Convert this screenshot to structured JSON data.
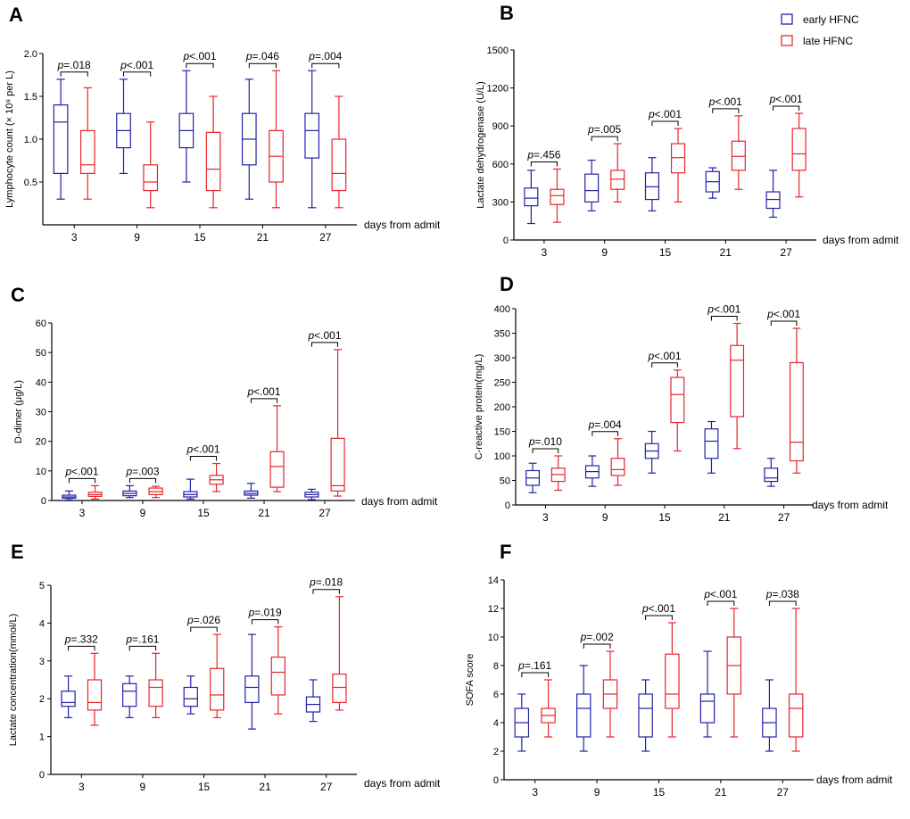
{
  "figure_title": "",
  "colors": {
    "early": "#2222a8",
    "late": "#e8262b",
    "axis": "#000000"
  },
  "legend": {
    "items": [
      {
        "label": "early HFNC",
        "series": "early"
      },
      {
        "label": "late HFNC",
        "series": "late"
      }
    ]
  },
  "chart_data": [
    {
      "type": "box",
      "panel": "A",
      "ylabel": "Lymphocyte count (× 10⁹ per L)",
      "xlabel": "days from admit",
      "categories": [
        "3",
        "9",
        "15",
        "21",
        "27"
      ],
      "ylim": [
        0,
        2.0
      ],
      "yticks": [
        0.5,
        1.0,
        1.5,
        2.0
      ],
      "ytick_labels": [
        "0.5",
        "1.0",
        "1.5",
        "2.0"
      ],
      "series": [
        {
          "name": "early HFNC",
          "boxes": [
            {
              "min": 0.3,
              "q1": 0.6,
              "median": 1.2,
              "q3": 1.4,
              "max": 1.7
            },
            {
              "min": 0.6,
              "q1": 0.9,
              "median": 1.1,
              "q3": 1.3,
              "max": 1.7
            },
            {
              "min": 0.5,
              "q1": 0.9,
              "median": 1.1,
              "q3": 1.3,
              "max": 1.8
            },
            {
              "min": 0.3,
              "q1": 0.7,
              "median": 1.0,
              "q3": 1.3,
              "max": 1.7
            },
            {
              "min": 0.2,
              "q1": 0.78,
              "median": 1.1,
              "q3": 1.3,
              "max": 1.8
            }
          ]
        },
        {
          "name": "late HFNC",
          "boxes": [
            {
              "min": 0.3,
              "q1": 0.6,
              "median": 0.7,
              "q3": 1.1,
              "max": 1.6
            },
            {
              "min": 0.2,
              "q1": 0.4,
              "median": 0.5,
              "q3": 0.7,
              "max": 1.2
            },
            {
              "min": 0.2,
              "q1": 0.4,
              "median": 0.65,
              "q3": 1.08,
              "max": 1.5
            },
            {
              "min": 0.2,
              "q1": 0.5,
              "median": 0.8,
              "q3": 1.1,
              "max": 1.8
            },
            {
              "min": 0.2,
              "q1": 0.4,
              "median": 0.6,
              "q3": 1.0,
              "max": 1.5
            }
          ]
        }
      ],
      "pvalues": [
        "=.018",
        "<.001",
        "<.001",
        "=.046",
        "=.004"
      ]
    },
    {
      "type": "box",
      "panel": "B",
      "ylabel": "Lactate dehydrogenase (U/L)",
      "xlabel": "days from admit",
      "categories": [
        "3",
        "9",
        "15",
        "21",
        "27"
      ],
      "ylim": [
        0,
        1500
      ],
      "yticks": [
        0,
        300,
        600,
        900,
        1200,
        1500
      ],
      "ytick_labels": [
        "0",
        "300",
        "600",
        "900",
        "1200",
        "1500"
      ],
      "series": [
        {
          "name": "early HFNC",
          "boxes": [
            {
              "min": 130,
              "q1": 270,
              "median": 330,
              "q3": 410,
              "max": 550
            },
            {
              "min": 230,
              "q1": 300,
              "median": 390,
              "q3": 520,
              "max": 630
            },
            {
              "min": 230,
              "q1": 320,
              "median": 420,
              "q3": 530,
              "max": 650
            },
            {
              "min": 330,
              "q1": 380,
              "median": 460,
              "q3": 540,
              "max": 570
            },
            {
              "min": 180,
              "q1": 250,
              "median": 320,
              "q3": 380,
              "max": 550
            }
          ]
        },
        {
          "name": "late HFNC",
          "boxes": [
            {
              "min": 140,
              "q1": 280,
              "median": 350,
              "q3": 400,
              "max": 560
            },
            {
              "min": 300,
              "q1": 400,
              "median": 480,
              "q3": 550,
              "max": 760
            },
            {
              "min": 300,
              "q1": 530,
              "median": 650,
              "q3": 760,
              "max": 880
            },
            {
              "min": 400,
              "q1": 550,
              "median": 660,
              "q3": 780,
              "max": 980
            },
            {
              "min": 340,
              "q1": 550,
              "median": 680,
              "q3": 880,
              "max": 1000
            }
          ]
        }
      ],
      "pvalues": [
        "=.456",
        "=.005",
        "<.001",
        "<.001",
        "<.001"
      ]
    },
    {
      "type": "box",
      "panel": "C",
      "ylabel": "D-dimer (μg/L)",
      "xlabel": "days from admit",
      "categories": [
        "3",
        "9",
        "15",
        "21",
        "27"
      ],
      "ylim": [
        0,
        60
      ],
      "yticks": [
        0,
        10,
        20,
        30,
        40,
        50,
        60
      ],
      "ytick_labels": [
        "0",
        "10",
        "20",
        "30",
        "40",
        "50",
        "60"
      ],
      "series": [
        {
          "name": "early HFNC",
          "boxes": [
            {
              "min": 0.2,
              "q1": 0.8,
              "median": 1.2,
              "q3": 1.8,
              "max": 3.2
            },
            {
              "min": 1.0,
              "q1": 1.6,
              "median": 2.4,
              "q3": 3.2,
              "max": 5.0
            },
            {
              "min": 0.5,
              "q1": 1.2,
              "median": 2.0,
              "q3": 3.0,
              "max": 7.2
            },
            {
              "min": 0.8,
              "q1": 1.8,
              "median": 2.4,
              "q3": 3.2,
              "max": 5.8
            },
            {
              "min": 0.3,
              "q1": 1.2,
              "median": 2.0,
              "q3": 2.8,
              "max": 3.8
            }
          ]
        },
        {
          "name": "late HFNC",
          "boxes": [
            {
              "min": 0.5,
              "q1": 1.4,
              "median": 2.0,
              "q3": 2.8,
              "max": 5.0
            },
            {
              "min": 1.0,
              "q1": 2.0,
              "median": 3.0,
              "q3": 4.2,
              "max": 4.8
            },
            {
              "min": 3.0,
              "q1": 5.5,
              "median": 7.0,
              "q3": 8.5,
              "max": 12.5
            },
            {
              "min": 3.0,
              "q1": 4.5,
              "median": 11.5,
              "q3": 16.5,
              "max": 32.0
            },
            {
              "min": 1.5,
              "q1": 3.2,
              "median": 5.0,
              "q3": 21.0,
              "max": 51.0
            }
          ]
        }
      ],
      "pvalues": [
        "<.001",
        "=.003",
        "<.001",
        "<.001",
        "<.001"
      ]
    },
    {
      "type": "box",
      "panel": "D",
      "ylabel": "C-reactive protein(mg/L)",
      "xlabel": "days from admit",
      "categories": [
        "3",
        "9",
        "15",
        "21",
        "27"
      ],
      "ylim": [
        0,
        400
      ],
      "yticks": [
        0,
        50,
        100,
        150,
        200,
        250,
        300,
        350,
        400
      ],
      "ytick_labels": [
        "0",
        "50",
        "100",
        "150",
        "200",
        "250",
        "300",
        "350",
        "400"
      ],
      "series": [
        {
          "name": "early HFNC",
          "boxes": [
            {
              "min": 25,
              "q1": 40,
              "median": 55,
              "q3": 70,
              "max": 85
            },
            {
              "min": 38,
              "q1": 55,
              "median": 68,
              "q3": 80,
              "max": 100
            },
            {
              "min": 65,
              "q1": 95,
              "median": 110,
              "q3": 125,
              "max": 150
            },
            {
              "min": 65,
              "q1": 95,
              "median": 130,
              "q3": 155,
              "max": 170
            },
            {
              "min": 38,
              "q1": 48,
              "median": 55,
              "q3": 75,
              "max": 95
            }
          ]
        },
        {
          "name": "late HFNC",
          "boxes": [
            {
              "min": 30,
              "q1": 48,
              "median": 62,
              "q3": 75,
              "max": 100
            },
            {
              "min": 40,
              "q1": 60,
              "median": 72,
              "q3": 95,
              "max": 135
            },
            {
              "min": 110,
              "q1": 168,
              "median": 225,
              "q3": 260,
              "max": 275
            },
            {
              "min": 115,
              "q1": 180,
              "median": 295,
              "q3": 325,
              "max": 370
            },
            {
              "min": 65,
              "q1": 90,
              "median": 128,
              "q3": 290,
              "max": 360
            }
          ]
        }
      ],
      "pvalues": [
        "=.010",
        "=.004",
        "<.001",
        "<.001",
        "<.001"
      ]
    },
    {
      "type": "box",
      "panel": "E",
      "ylabel": "Lactate concentration(mmol/L)",
      "xlabel": "days from admit",
      "categories": [
        "3",
        "9",
        "15",
        "21",
        "27"
      ],
      "ylim": [
        0,
        5
      ],
      "yticks": [
        0,
        1,
        2,
        3,
        4,
        5
      ],
      "ytick_labels": [
        "0",
        "1",
        "2",
        "3",
        "4",
        "5"
      ],
      "series": [
        {
          "name": "early HFNC",
          "boxes": [
            {
              "min": 1.5,
              "q1": 1.8,
              "median": 1.9,
              "q3": 2.2,
              "max": 2.6
            },
            {
              "min": 1.5,
              "q1": 1.8,
              "median": 2.2,
              "q3": 2.4,
              "max": 2.6
            },
            {
              "min": 1.6,
              "q1": 1.8,
              "median": 2.0,
              "q3": 2.3,
              "max": 2.6
            },
            {
              "min": 1.2,
              "q1": 1.9,
              "median": 2.3,
              "q3": 2.6,
              "max": 3.7
            },
            {
              "min": 1.4,
              "q1": 1.65,
              "median": 1.85,
              "q3": 2.05,
              "max": 2.5
            }
          ]
        },
        {
          "name": "late HFNC",
          "boxes": [
            {
              "min": 1.3,
              "q1": 1.7,
              "median": 1.9,
              "q3": 2.5,
              "max": 3.2
            },
            {
              "min": 1.5,
              "q1": 1.8,
              "median": 2.3,
              "q3": 2.5,
              "max": 3.2
            },
            {
              "min": 1.5,
              "q1": 1.7,
              "median": 2.1,
              "q3": 2.8,
              "max": 3.7
            },
            {
              "min": 1.6,
              "q1": 2.1,
              "median": 2.7,
              "q3": 3.1,
              "max": 3.9
            },
            {
              "min": 1.7,
              "q1": 1.9,
              "median": 2.3,
              "q3": 2.65,
              "max": 4.7
            }
          ]
        }
      ],
      "pvalues": [
        "=.332",
        "=.161",
        "=.026",
        "=.019",
        "=.018"
      ]
    },
    {
      "type": "box",
      "panel": "F",
      "ylabel": "SOFA score",
      "xlabel": "days from admit",
      "categories": [
        "3",
        "9",
        "15",
        "21",
        "27"
      ],
      "ylim": [
        0,
        14
      ],
      "yticks": [
        0,
        2,
        4,
        6,
        8,
        10,
        12,
        14
      ],
      "ytick_labels": [
        "0",
        "2",
        "4",
        "6",
        "8",
        "10",
        "12",
        "14"
      ],
      "series": [
        {
          "name": "early HFNC",
          "boxes": [
            {
              "min": 2,
              "q1": 3,
              "median": 4,
              "q3": 5,
              "max": 6
            },
            {
              "min": 2,
              "q1": 3,
              "median": 5,
              "q3": 6,
              "max": 8
            },
            {
              "min": 2,
              "q1": 3,
              "median": 5,
              "q3": 6,
              "max": 7
            },
            {
              "min": 3,
              "q1": 4,
              "median": 5.5,
              "q3": 6,
              "max": 9
            },
            {
              "min": 2,
              "q1": 3,
              "median": 4,
              "q3": 5,
              "max": 7
            }
          ]
        },
        {
          "name": "late HFNC",
          "boxes": [
            {
              "min": 3,
              "q1": 4,
              "median": 4.5,
              "q3": 5,
              "max": 7
            },
            {
              "min": 3,
              "q1": 5,
              "median": 6,
              "q3": 7,
              "max": 9
            },
            {
              "min": 3,
              "q1": 5,
              "median": 6,
              "q3": 8.8,
              "max": 11
            },
            {
              "min": 3,
              "q1": 6,
              "median": 8,
              "q3": 10,
              "max": 12
            },
            {
              "min": 2,
              "q1": 3,
              "median": 5,
              "q3": 6,
              "max": 12
            }
          ]
        }
      ],
      "pvalues": [
        "=.161",
        "=.002",
        "<.001",
        "<.001",
        "=.038"
      ]
    }
  ]
}
